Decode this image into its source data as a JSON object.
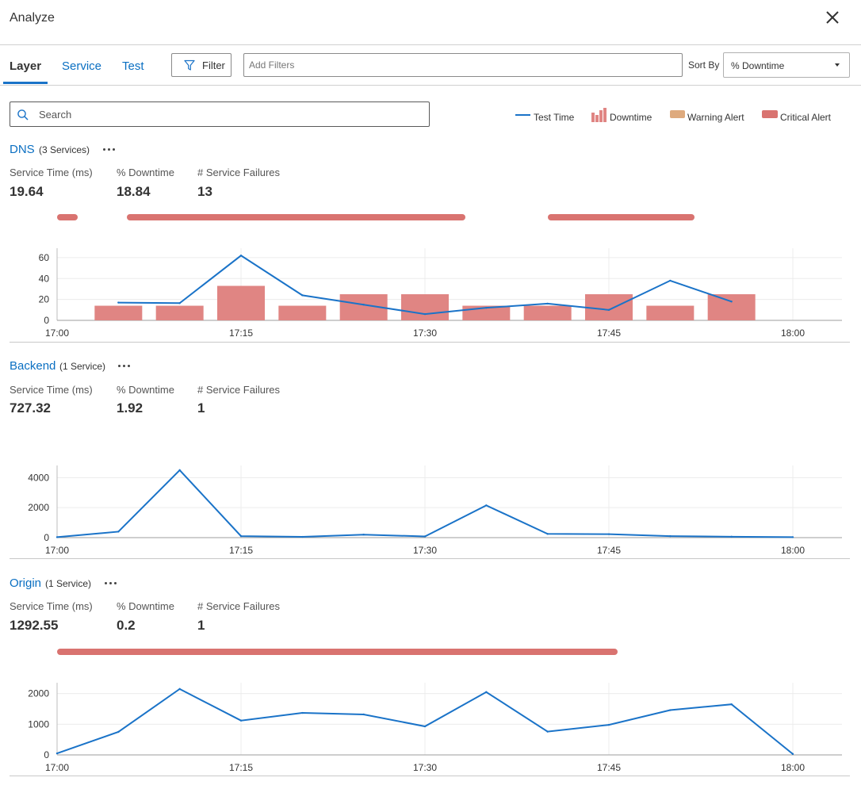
{
  "window": {
    "title": "Analyze"
  },
  "tabs": [
    {
      "label": "Layer",
      "active": true
    },
    {
      "label": "Service",
      "active": false
    },
    {
      "label": "Test",
      "active": false
    }
  ],
  "toolbar": {
    "filter_label": "Filter",
    "add_filters_placeholder": "Add Filters",
    "sort_by_label": "Sort By",
    "sort_by_value": "% Downtime"
  },
  "search": {
    "placeholder": "Search"
  },
  "legend": [
    {
      "label": "Test Time",
      "icon": "line-icon",
      "color": "#1a73c8"
    },
    {
      "label": "Downtime",
      "icon": "bar-icon",
      "color": "#e08583"
    },
    {
      "label": "Warning Alert",
      "icon": "warning-swatch",
      "color": "#deaa7e"
    },
    {
      "label": "Critical Alert",
      "icon": "critical-swatch",
      "color": "#d97370"
    }
  ],
  "colors": {
    "accent": "#0a6fc2",
    "line": "#1a73c8",
    "bar": "#e08583",
    "critical": "#d97370",
    "warning": "#deaa7e"
  },
  "stat_labels": {
    "service_time": "Service Time (ms)",
    "downtime": "% Downtime",
    "failures": "# Service Failures"
  },
  "sections": [
    {
      "name": "DNS",
      "count": "(3 Services)",
      "service_time": "19.64",
      "downtime": "18.84",
      "failures": "13"
    },
    {
      "name": "Backend",
      "count": "(1 Service)",
      "service_time": "727.32",
      "downtime": "1.92",
      "failures": "1"
    },
    {
      "name": "Origin",
      "count": "(1 Service)",
      "service_time": "1292.55",
      "downtime": "0.2",
      "failures": "1"
    }
  ],
  "chart_data": [
    {
      "type": "line",
      "section": "DNS",
      "xticks": [
        "17:00",
        "17:15",
        "17:30",
        "17:45",
        "18:00"
      ],
      "xrange_minutes": [
        0,
        60
      ],
      "yticks": [
        "0",
        "20",
        "40",
        "60"
      ],
      "ylim": [
        0,
        66
      ],
      "grid": true,
      "series": [
        {
          "name": "Test Time",
          "type": "line",
          "x": [
            5,
            10,
            15,
            20,
            25,
            30,
            35,
            40,
            45,
            50,
            55
          ],
          "values": [
            17,
            16.5,
            62,
            24,
            15,
            6,
            12,
            16,
            10,
            38,
            18
          ]
        },
        {
          "name": "Downtime",
          "type": "bar",
          "x": [
            5,
            10,
            15,
            20,
            25,
            30,
            35,
            40,
            45,
            50,
            55
          ],
          "values": [
            14,
            14,
            33,
            14,
            25,
            25,
            14,
            14,
            25,
            14,
            25
          ]
        }
      ],
      "critical_alerts": [
        [
          0,
          1.7
        ],
        [
          5.7,
          33.3
        ],
        [
          40,
          52
        ]
      ]
    },
    {
      "type": "line",
      "section": "Backend",
      "xticks": [
        "17:00",
        "17:15",
        "17:30",
        "17:45",
        "18:00"
      ],
      "xrange_minutes": [
        0,
        60
      ],
      "yticks": [
        "0",
        "2000",
        "4000"
      ],
      "ylim": [
        0,
        4600
      ],
      "grid": true,
      "series": [
        {
          "name": "Test Time",
          "type": "line",
          "x": [
            0,
            5,
            10,
            15,
            20,
            25,
            30,
            35,
            40,
            45,
            50,
            55,
            60
          ],
          "values": [
            30,
            400,
            4500,
            100,
            50,
            200,
            80,
            2150,
            250,
            230,
            100,
            60,
            30
          ]
        }
      ],
      "critical_alerts": []
    },
    {
      "type": "line",
      "section": "Origin",
      "xticks": [
        "17:00",
        "17:15",
        "17:30",
        "17:45",
        "18:00"
      ],
      "xrange_minutes": [
        0,
        60
      ],
      "yticks": [
        "0",
        "1000",
        "2000"
      ],
      "ylim": [
        0,
        2250
      ],
      "grid": true,
      "series": [
        {
          "name": "Test Time",
          "type": "line",
          "x": [
            0,
            5,
            10,
            15,
            20,
            25,
            30,
            35,
            40,
            45,
            50,
            55,
            60
          ],
          "values": [
            50,
            750,
            2150,
            1120,
            1370,
            1320,
            930,
            2050,
            760,
            980,
            1460,
            1650,
            30
          ]
        }
      ],
      "critical_alerts": [
        [
          0,
          45.7
        ]
      ]
    }
  ]
}
